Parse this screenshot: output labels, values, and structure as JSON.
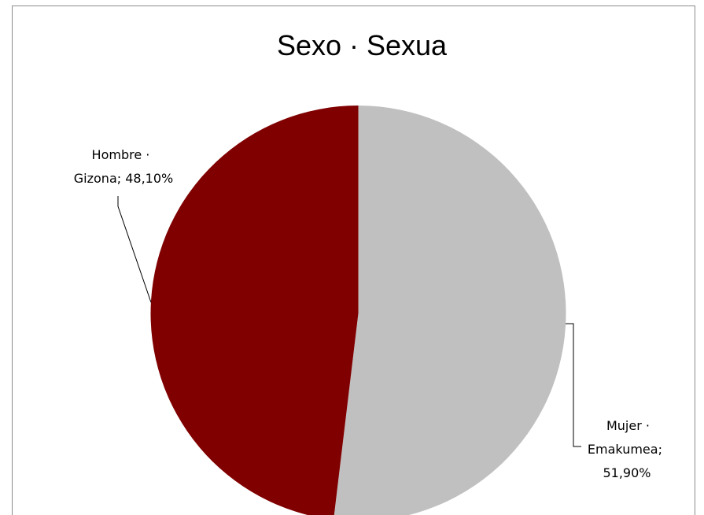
{
  "chart_data": {
    "type": "pie",
    "title": "Sexo · Sexua",
    "slices": [
      {
        "label_lines": [
          "Mujer ·",
          "Emakumea;",
          "51,90%"
        ],
        "category": "Mujer · Emakumea",
        "value": 51.9,
        "display_value": "51,90%",
        "color": "#C0C0C0"
      },
      {
        "label_lines": [
          "Hombre ·",
          "Gizona; 48,10%"
        ],
        "category": "Hombre · Gizona",
        "value": 48.1,
        "display_value": "48,10%",
        "color": "#800000"
      }
    ],
    "start_angle": "12 o'clock",
    "direction": "clockwise",
    "legend": "none"
  }
}
